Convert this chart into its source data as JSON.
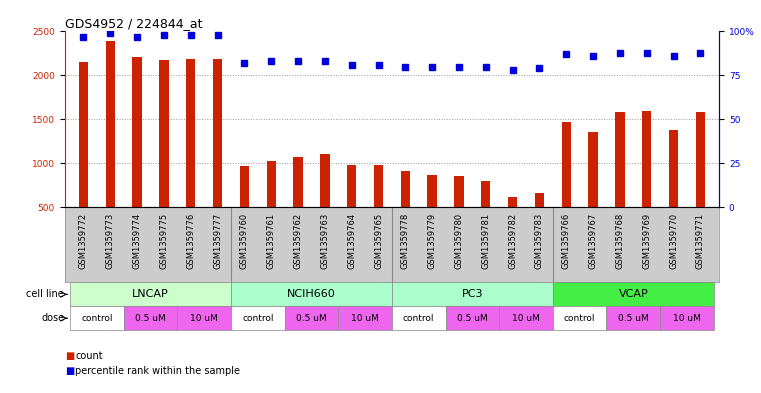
{
  "title": "GDS4952 / 224844_at",
  "samples": [
    "GSM1359772",
    "GSM1359773",
    "GSM1359774",
    "GSM1359775",
    "GSM1359776",
    "GSM1359777",
    "GSM1359760",
    "GSM1359761",
    "GSM1359762",
    "GSM1359763",
    "GSM1359764",
    "GSM1359765",
    "GSM1359778",
    "GSM1359779",
    "GSM1359780",
    "GSM1359781",
    "GSM1359782",
    "GSM1359783",
    "GSM1359766",
    "GSM1359767",
    "GSM1359768",
    "GSM1359769",
    "GSM1359770",
    "GSM1359771"
  ],
  "counts": [
    2150,
    2390,
    2210,
    2170,
    2190,
    2190,
    970,
    1030,
    1070,
    1110,
    980,
    980,
    910,
    870,
    850,
    800,
    620,
    660,
    1470,
    1350,
    1580,
    1590,
    1380,
    1580
  ],
  "percentile": [
    97,
    99,
    97,
    98,
    98,
    98,
    82,
    83,
    83,
    83,
    81,
    81,
    80,
    80,
    80,
    80,
    78,
    79,
    87,
    86,
    88,
    88,
    86,
    88
  ],
  "cell_lines": [
    {
      "label": "LNCAP",
      "start": 0,
      "end": 6,
      "color": "#ccffcc"
    },
    {
      "label": "NCIH660",
      "start": 6,
      "end": 12,
      "color": "#aaffcc"
    },
    {
      "label": "PC3",
      "start": 12,
      "end": 18,
      "color": "#aaffcc"
    },
    {
      "label": "VCAP",
      "start": 18,
      "end": 24,
      "color": "#44ee44"
    }
  ],
  "doses": [
    {
      "label": "control",
      "start": 0,
      "end": 2,
      "color": "#ffffff"
    },
    {
      "label": "0.5 uM",
      "start": 2,
      "end": 4,
      "color": "#ee88ee"
    },
    {
      "label": "10 uM",
      "start": 4,
      "end": 6,
      "color": "#ee88ee"
    },
    {
      "label": "control",
      "start": 6,
      "end": 8,
      "color": "#ffffff"
    },
    {
      "label": "0.5 uM",
      "start": 8,
      "end": 10,
      "color": "#ee88ee"
    },
    {
      "label": "10 uM",
      "start": 10,
      "end": 12,
      "color": "#ee88ee"
    },
    {
      "label": "control",
      "start": 12,
      "end": 14,
      "color": "#ffffff"
    },
    {
      "label": "0.5 uM",
      "start": 14,
      "end": 16,
      "color": "#ee88ee"
    },
    {
      "label": "10 uM",
      "start": 16,
      "end": 18,
      "color": "#ee88ee"
    },
    {
      "label": "control",
      "start": 18,
      "end": 20,
      "color": "#ffffff"
    },
    {
      "label": "0.5 uM",
      "start": 20,
      "end": 22,
      "color": "#ee88ee"
    },
    {
      "label": "10 uM",
      "start": 22,
      "end": 24,
      "color": "#ee88ee"
    }
  ],
  "ylim_left": [
    500,
    2500
  ],
  "ylim_right": [
    0,
    100
  ],
  "yticks_left": [
    500,
    1000,
    1500,
    2000,
    2500
  ],
  "yticks_right": [
    0,
    25,
    50,
    75,
    100
  ],
  "bar_color": "#cc2200",
  "dot_color": "#0000dd",
  "grid_color": "#999999",
  "bg_color": "#ffffff",
  "sample_bg": "#cccccc",
  "title_fontsize": 9,
  "tick_fontsize": 6.5,
  "sample_fontsize": 6,
  "label_fontsize": 8
}
